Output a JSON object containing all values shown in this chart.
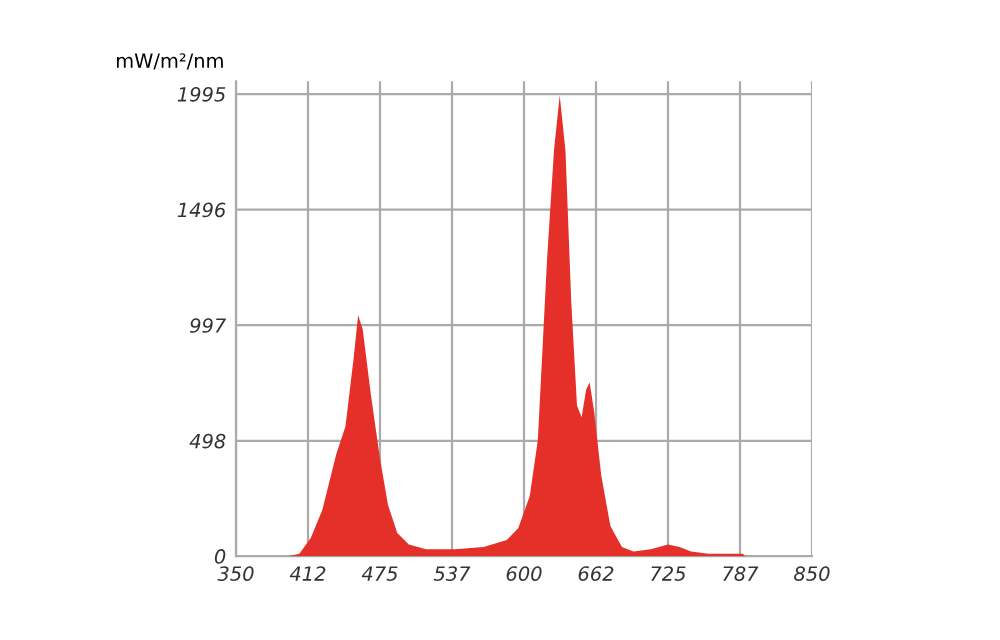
{
  "chart_data": {
    "type": "area",
    "ylabel": "mW/m²/nm",
    "x": [
      395,
      405,
      415,
      425,
      437,
      445,
      452,
      456,
      460,
      467,
      475,
      482,
      490,
      500,
      515,
      540,
      565,
      585,
      595,
      605,
      612,
      620,
      626,
      631,
      636,
      641,
      646,
      650,
      654,
      657,
      661,
      667,
      675,
      685,
      695,
      710,
      725,
      735,
      745,
      760,
      790,
      792
    ],
    "series": [
      {
        "color": "#e5302a",
        "values": [
          0,
          10,
          80,
          200,
          440,
          560,
          850,
          1040,
          980,
          700,
          420,
          220,
          100,
          50,
          30,
          30,
          40,
          70,
          120,
          260,
          500,
          1280,
          1750,
          1990,
          1750,
          1100,
          650,
          600,
          720,
          750,
          620,
          350,
          130,
          40,
          20,
          30,
          50,
          40,
          20,
          10,
          10,
          0
        ]
      }
    ],
    "xlim": [
      350,
      850
    ],
    "xticks": [
      350,
      {
        "value": 412.5,
        "label": "412"
      },
      475,
      {
        "value": 537.5,
        "label": "537"
      },
      600,
      {
        "value": 662.5,
        "label": "662"
      },
      725,
      {
        "value": 787.5,
        "label": "787"
      },
      850
    ],
    "ylim": [
      0,
      2050
    ],
    "yticks": [
      0,
      498,
      997,
      1496,
      1995
    ],
    "grid": true,
    "legend": false
  }
}
